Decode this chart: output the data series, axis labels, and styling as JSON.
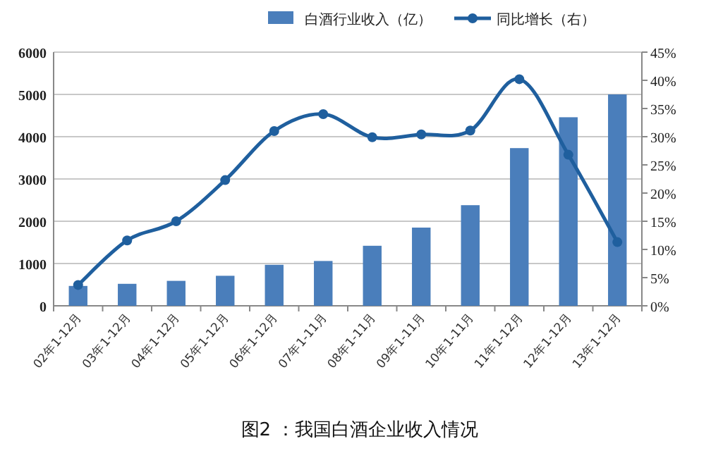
{
  "chart_data": {
    "type": "bar",
    "categories": [
      "02年1-12月",
      "03年1-12月",
      "04年1-12月",
      "05年1-12月",
      "06年1-12月",
      "07年1-11月",
      "08年1-11月",
      "09年1-11月",
      "10年1-11月",
      "11年1-12月",
      "12年1-12月",
      "13年1-12月"
    ],
    "series": [
      {
        "name": "白酒行业收入（亿）",
        "color": "#4a7ebb",
        "values": [
          470,
          520,
          590,
          710,
          970,
          1060,
          1420,
          1850,
          2380,
          3730,
          4460,
          5000
        ]
      },
      {
        "name": "同比增长（右）",
        "type": "line",
        "axis": "y2",
        "color": "#1f5f9e",
        "marker": "circle",
        "values": [
          3.7,
          11.6,
          15.0,
          22.3,
          31.0,
          34.0,
          29.9,
          30.4,
          31.1,
          40.2,
          26.8,
          11.3
        ]
      }
    ],
    "ylim": [
      0,
      6000
    ],
    "yticks": [
      0,
      1000,
      2000,
      3000,
      4000,
      5000,
      6000
    ],
    "y2lim": [
      0,
      45
    ],
    "y2ticks": [
      {
        "value": 0,
        "label": "0%"
      },
      {
        "value": 5,
        "label": "5%"
      },
      {
        "value": 10,
        "label": "10%"
      },
      {
        "value": 15,
        "label": "15%"
      },
      {
        "value": 20,
        "label": "20%"
      },
      {
        "value": 25,
        "label": "25%"
      },
      {
        "value": 30,
        "label": "30%"
      },
      {
        "value": 35,
        "label": "35%"
      },
      {
        "value": 40,
        "label": "40%"
      },
      {
        "value": 45,
        "label": "45%"
      }
    ],
    "grid": "y",
    "legend": "top",
    "annotations": [
      "图2 ：我国白酒企业收入情况"
    ]
  }
}
